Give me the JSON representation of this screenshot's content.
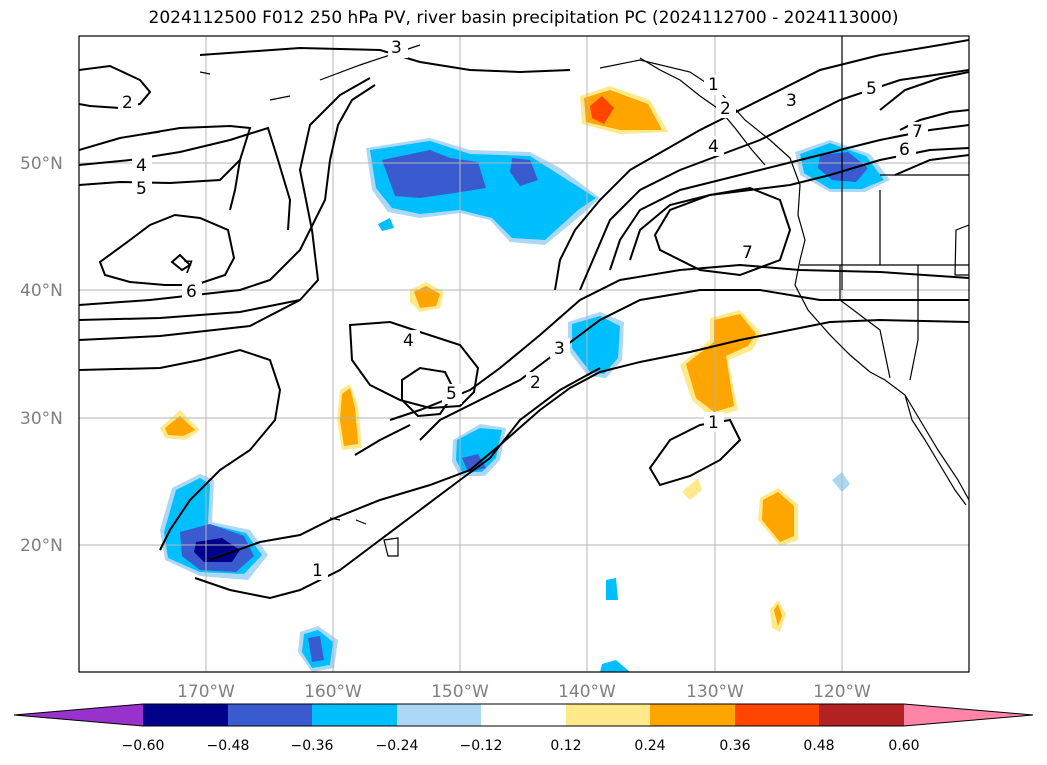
{
  "title": "2024112500 F012 250 hPa PV, river basin precipitation PC (2024112700 - 2024113000)",
  "map": {
    "lon_ticks": [
      "170°W",
      "160°W",
      "150°W",
      "140°W",
      "130°W",
      "120°W"
    ],
    "lat_ticks": [
      "50°N",
      "40°N",
      "30°N",
      "20°N"
    ],
    "pv_contour_labels": [
      "1",
      "2",
      "3",
      "4",
      "5",
      "6",
      "7"
    ]
  },
  "colorbar": {
    "ticks": [
      "−0.60",
      "−0.48",
      "−0.36",
      "−0.24",
      "−0.12",
      "0.12",
      "0.24",
      "0.36",
      "0.48",
      "0.60"
    ],
    "colors": [
      "#9932cc",
      "#00008b",
      "#3a5bd0",
      "#00bfff",
      "#add8f5",
      "#ffffff",
      "#ffe98a",
      "#ffa500",
      "#ff4500",
      "#b22222",
      "#ff85a8"
    ]
  },
  "chart_data": {
    "type": "contour map",
    "fields": [
      {
        "name": "250 hPa PV",
        "style": "black contours",
        "levels": [
          1,
          2,
          3,
          4,
          5,
          6,
          7
        ]
      },
      {
        "name": "river basin precipitation PC",
        "style": "filled contours",
        "levels": [
          -0.6,
          -0.48,
          -0.36,
          -0.24,
          -0.12,
          0.12,
          0.24,
          0.36,
          0.48,
          0.6
        ]
      }
    ],
    "lon_range": [
      "180°W",
      "110°W"
    ],
    "lat_range": [
      "10°N",
      "60°N"
    ],
    "grid": true
  }
}
